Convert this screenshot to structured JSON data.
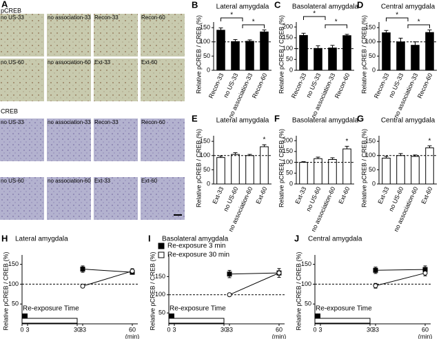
{
  "micrographs": {
    "panel": "A",
    "sections": [
      {
        "title": "pCREB",
        "images": [
          "no US-33",
          "no association-33",
          "Recon-33",
          "Recon-60",
          "no US-60",
          "no association-60",
          "Ext-33",
          "Ext-60"
        ]
      },
      {
        "title": "CREB",
        "images": [
          "no US-33",
          "no association-33",
          "Recon-33",
          "Recon-60",
          "no US-60",
          "no association-60",
          "Ext-33",
          "Ext-60"
        ]
      }
    ]
  },
  "chart_data": [
    {
      "panel": "B",
      "type": "bar",
      "title": "Lateral amygdala",
      "y_label": "Relative pCREB / CREB (%)",
      "categories": [
        "Recon-33",
        "no US-33",
        "no association-33",
        "Recon-60"
      ],
      "values": [
        141,
        101,
        102,
        135
      ],
      "errors": [
        8,
        7,
        5,
        7
      ],
      "color": "#000000",
      "ylim": [
        0,
        160
      ],
      "yticks": [
        0,
        50,
        100,
        150
      ],
      "reference_line": 100,
      "annotations": [
        "*",
        "*"
      ]
    },
    {
      "panel": "C",
      "type": "bar",
      "title": "Basolateral amygdala",
      "y_label": "Relative pCREB / CREB (%)",
      "categories": [
        "Recon-33",
        "no US-33",
        "no association-33",
        "Recon-60"
      ],
      "values": [
        161,
        101,
        103,
        160
      ],
      "errors": [
        10,
        12,
        12,
        6
      ],
      "color": "#000000",
      "ylim": [
        0,
        210
      ],
      "yticks": [
        0,
        50,
        100,
        150,
        200
      ],
      "reference_line": 100,
      "annotations": [
        "*",
        "*"
      ]
    },
    {
      "panel": "D",
      "type": "bar",
      "title": "Central amygdala",
      "y_label": "Relative pCREB / CREB (%)",
      "categories": [
        "Recon-33",
        "no US-33",
        "no association-33",
        "Recon-60"
      ],
      "values": [
        132,
        100,
        88,
        133
      ],
      "errors": [
        8,
        13,
        12,
        9
      ],
      "color": "#000000",
      "ylim": [
        0,
        160
      ],
      "yticks": [
        0,
        50,
        100,
        150
      ],
      "reference_line": 100,
      "annotations": [
        "*",
        "*"
      ]
    },
    {
      "panel": "E",
      "type": "bar",
      "title": "Lateral amygdala",
      "y_label": "Relative pCREB / CREB (%)",
      "categories": [
        "Ext-33",
        "no US-60",
        "no association-60",
        "Ext-60"
      ],
      "values": [
        93,
        104,
        100,
        131
      ],
      "errors": [
        5,
        6,
        4,
        7
      ],
      "color": "#ffffff",
      "ylim": [
        0,
        160
      ],
      "yticks": [
        0,
        50,
        100,
        150
      ],
      "reference_line": 100,
      "annotations": [
        "*"
      ]
    },
    {
      "panel": "F",
      "type": "bar",
      "title": "Basolateral amygdala",
      "y_label": "Relative pCREB / CREB (%)",
      "categories": [
        "Ext-33",
        "no US-60",
        "no association-60",
        "Ext-60"
      ],
      "values": [
        100,
        117,
        113,
        162
      ],
      "errors": [
        3,
        7,
        8,
        12
      ],
      "color": "#ffffff",
      "ylim": [
        0,
        210
      ],
      "yticks": [
        0,
        50,
        100,
        150,
        200
      ],
      "reference_line": 100,
      "annotations": [
        "*"
      ]
    },
    {
      "panel": "G",
      "type": "bar",
      "title": "Central amygdala",
      "y_label": "Relative pCREB / CREB (%)",
      "categories": [
        "Ext-33",
        "no US-60",
        "no association-60",
        "Ext-60"
      ],
      "values": [
        91,
        100,
        97,
        127
      ],
      "errors": [
        6,
        7,
        5,
        7
      ],
      "color": "#ffffff",
      "ylim": [
        0,
        160
      ],
      "yticks": [
        0,
        50,
        100,
        150
      ],
      "reference_line": 100,
      "annotations": [
        "*"
      ]
    },
    {
      "panel": "H",
      "type": "line",
      "title": "Lateral amygdala",
      "y_label": "Relative pCREB / CREB (%)",
      "x": [
        33,
        60
      ],
      "series": [
        {
          "name": "Re-exposure 3 min",
          "color": "#000000",
          "marker": "square",
          "values": [
            138,
            130
          ],
          "errors": [
            8,
            5
          ]
        },
        {
          "name": "Re-exposure 30 min",
          "color": "#ffffff",
          "marker": "circle",
          "values": [
            95,
            133
          ],
          "errors": [
            4,
            6
          ]
        }
      ],
      "xlim": [
        0,
        63
      ],
      "xticks": [
        0,
        3,
        30,
        33,
        60
      ],
      "x_unit": "(min)",
      "ylim": [
        0,
        165
      ],
      "yticks": [
        50,
        100,
        150
      ],
      "reference_line": 100,
      "annotation": "Re-exposure Time",
      "legend": "top-right"
    },
    {
      "panel": "I",
      "type": "line",
      "title": "Basolateral amygdala",
      "y_label": "Relative pCREB / CREB (%)",
      "x": [
        33,
        60
      ],
      "series": [
        {
          "name": "Re-exposure 3 min",
          "color": "#000000",
          "marker": "square",
          "values": [
            157,
            160
          ],
          "errors": [
            10,
            6
          ]
        },
        {
          "name": "Re-exposure 30 min",
          "color": "#ffffff",
          "marker": "circle",
          "values": [
            100,
            160
          ],
          "errors": [
            3,
            12
          ]
        }
      ],
      "xlim": [
        0,
        63
      ],
      "xticks": [
        0,
        3,
        30,
        33,
        60
      ],
      "x_unit": "(min)",
      "ylim": [
        20,
        200
      ],
      "yticks": [
        50,
        100,
        150
      ],
      "reference_line": 100,
      "annotation": "Re-exposure Time"
    },
    {
      "panel": "J",
      "type": "line",
      "title": "Central amygdala",
      "y_label": "Relative pCREB / CREB (%)",
      "x": [
        33,
        60
      ],
      "series": [
        {
          "name": "Re-exposure 3 min",
          "color": "#000000",
          "marker": "square",
          "values": [
            135,
            137
          ],
          "errors": [
            8,
            9
          ]
        },
        {
          "name": "Re-exposure 30 min",
          "color": "#ffffff",
          "marker": "circle",
          "values": [
            96,
            128
          ],
          "errors": [
            6,
            7
          ]
        }
      ],
      "xlim": [
        0,
        63
      ],
      "xticks": [
        0,
        3,
        30,
        33,
        60
      ],
      "x_unit": "(min)",
      "ylim": [
        0,
        165
      ],
      "yticks": [
        50,
        100,
        150
      ],
      "reference_line": 100,
      "annotation": "Re-exposure Time"
    }
  ]
}
